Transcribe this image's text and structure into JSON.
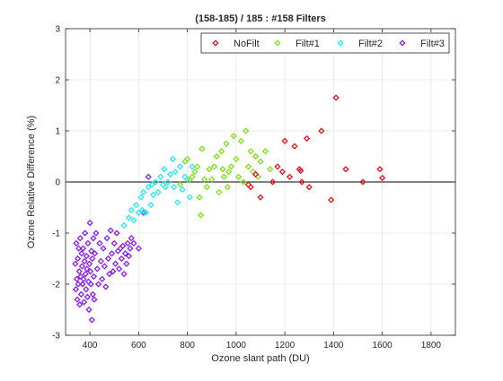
{
  "chart_data": {
    "type": "scatter",
    "title": "(158-185) / 185 : #158 Filters",
    "xlabel": "Ozone slant path (DU)",
    "ylabel": "Ozone Relative Difference (%)",
    "xlim": [
      300,
      1900
    ],
    "ylim": [
      -3,
      3
    ],
    "x_ticks": [
      400,
      600,
      800,
      1000,
      1200,
      1400,
      1600,
      1800
    ],
    "y_ticks": [
      -3,
      -2,
      -1,
      0,
      1,
      2,
      3
    ],
    "grid": true,
    "legend_position": "top",
    "legend_orientation": "horizontal",
    "marker": "diamond",
    "reference_line_y": 0,
    "series": [
      {
        "name": "NoFilt",
        "color": "#e8101c",
        "points": [
          [
            1050,
            -0.05
          ],
          [
            1060,
            -0.1
          ],
          [
            1080,
            0.15
          ],
          [
            1100,
            -0.3
          ],
          [
            1150,
            0.0
          ],
          [
            1170,
            0.3
          ],
          [
            1190,
            0.2
          ],
          [
            1200,
            0.8
          ],
          [
            1220,
            0.1
          ],
          [
            1240,
            0.7
          ],
          [
            1260,
            0.25
          ],
          [
            1265,
            0.22
          ],
          [
            1270,
            0.0
          ],
          [
            1290,
            0.85
          ],
          [
            1300,
            -0.1
          ],
          [
            1350,
            1.0
          ],
          [
            1390,
            -0.35
          ],
          [
            1410,
            1.65
          ],
          [
            1450,
            0.25
          ],
          [
            1520,
            0.0
          ],
          [
            1590,
            0.25
          ],
          [
            1600,
            0.08
          ]
        ]
      },
      {
        "name": "Filt#1",
        "color": "#7ee01a",
        "points": [
          [
            770,
            -0.05
          ],
          [
            790,
            0.4
          ],
          [
            800,
            0.45
          ],
          [
            810,
            0.05
          ],
          [
            820,
            0.1
          ],
          [
            830,
            0.2
          ],
          [
            840,
            0.3
          ],
          [
            850,
            -0.3
          ],
          [
            855,
            -0.65
          ],
          [
            860,
            0.65
          ],
          [
            870,
            0.05
          ],
          [
            880,
            -0.1
          ],
          [
            890,
            0.25
          ],
          [
            900,
            0.05
          ],
          [
            910,
            0.3
          ],
          [
            920,
            0.5
          ],
          [
            930,
            -0.2
          ],
          [
            940,
            0.6
          ],
          [
            945,
            0.25
          ],
          [
            950,
            0.1
          ],
          [
            960,
            0.75
          ],
          [
            965,
            -0.1
          ],
          [
            970,
            0.2
          ],
          [
            980,
            0.3
          ],
          [
            990,
            0.9
          ],
          [
            1000,
            0.45
          ],
          [
            1010,
            0.1
          ],
          [
            1020,
            0.8
          ],
          [
            1030,
            0.0
          ],
          [
            1040,
            1.0
          ],
          [
            1050,
            0.3
          ],
          [
            1060,
            0.6
          ],
          [
            1070,
            0.2
          ],
          [
            1080,
            0.5
          ],
          [
            1090,
            0.1
          ],
          [
            1100,
            0.4
          ],
          [
            1120,
            0.6
          ],
          [
            1140,
            0.25
          ]
        ]
      },
      {
        "name": "Filt#2",
        "color": "#2ae8f0",
        "points": [
          [
            540,
            -0.85
          ],
          [
            560,
            -0.7
          ],
          [
            570,
            -0.55
          ],
          [
            580,
            -0.75
          ],
          [
            590,
            -0.45
          ],
          [
            600,
            -0.6
          ],
          [
            610,
            -0.3
          ],
          [
            615,
            -0.55
          ],
          [
            620,
            -0.2
          ],
          [
            630,
            -0.6
          ],
          [
            640,
            -0.1
          ],
          [
            650,
            -0.45
          ],
          [
            655,
            -0.05
          ],
          [
            660,
            -0.25
          ],
          [
            670,
            0.0
          ],
          [
            680,
            -0.2
          ],
          [
            690,
            0.1
          ],
          [
            700,
            -0.05
          ],
          [
            705,
            0.25
          ],
          [
            710,
            -0.1
          ],
          [
            720,
            0.0
          ],
          [
            730,
            0.15
          ],
          [
            740,
            0.45
          ],
          [
            745,
            -0.1
          ],
          [
            750,
            0.2
          ],
          [
            760,
            -0.4
          ],
          [
            770,
            0.3
          ],
          [
            780,
            -0.15
          ],
          [
            790,
            0.1
          ],
          [
            800,
            0.05
          ],
          [
            810,
            -0.3
          ],
          [
            820,
            0.3
          ]
        ]
      },
      {
        "name": "Filt#3",
        "color": "#8a1ee8",
        "points": [
          [
            340,
            -1.6
          ],
          [
            342,
            -2.1
          ],
          [
            344,
            -1.2
          ],
          [
            346,
            -1.9
          ],
          [
            348,
            -2.3
          ],
          [
            350,
            -1.5
          ],
          [
            352,
            -2.0
          ],
          [
            354,
            -1.3
          ],
          [
            356,
            -1.75
          ],
          [
            358,
            -2.4
          ],
          [
            360,
            -1.1
          ],
          [
            362,
            -1.85
          ],
          [
            364,
            -2.2
          ],
          [
            366,
            -1.4
          ],
          [
            368,
            -1.65
          ],
          [
            370,
            -2.0
          ],
          [
            372,
            -1.3
          ],
          [
            374,
            -1.9
          ],
          [
            376,
            -2.35
          ],
          [
            378,
            -1.55
          ],
          [
            380,
            -1.0
          ],
          [
            382,
            -1.8
          ],
          [
            384,
            -2.1
          ],
          [
            386,
            -1.45
          ],
          [
            388,
            -1.7
          ],
          [
            390,
            -2.25
          ],
          [
            392,
            -1.2
          ],
          [
            394,
            -1.95
          ],
          [
            396,
            -2.5
          ],
          [
            398,
            -1.6
          ],
          [
            400,
            -0.8
          ],
          [
            402,
            -1.75
          ],
          [
            404,
            -2.0
          ],
          [
            406,
            -1.35
          ],
          [
            408,
            -2.7
          ],
          [
            410,
            -1.5
          ],
          [
            412,
            -2.2
          ],
          [
            414,
            -1.1
          ],
          [
            416,
            -1.85
          ],
          [
            418,
            -2.3
          ],
          [
            420,
            -1.4
          ],
          [
            425,
            -1.0
          ],
          [
            430,
            -1.7
          ],
          [
            435,
            -2.0
          ],
          [
            440,
            -1.2
          ],
          [
            445,
            -1.55
          ],
          [
            450,
            -1.9
          ],
          [
            455,
            -1.3
          ],
          [
            460,
            -1.65
          ],
          [
            465,
            -2.05
          ],
          [
            470,
            -1.1
          ],
          [
            475,
            -1.5
          ],
          [
            480,
            -1.8
          ],
          [
            485,
            -0.95
          ],
          [
            490,
            -1.4
          ],
          [
            495,
            -1.75
          ],
          [
            500,
            -1.2
          ],
          [
            505,
            -1.6
          ],
          [
            510,
            -1.0
          ],
          [
            515,
            -1.35
          ],
          [
            520,
            -1.7
          ],
          [
            525,
            -1.3
          ],
          [
            530,
            -1.5
          ],
          [
            535,
            -1.25
          ],
          [
            540,
            -1.8
          ],
          [
            545,
            -1.4
          ],
          [
            550,
            -1.6
          ],
          [
            555,
            -1.2
          ],
          [
            560,
            -1.45
          ],
          [
            565,
            -1.3
          ],
          [
            570,
            -1.1
          ],
          [
            580,
            -1.2
          ],
          [
            600,
            -1.3
          ],
          [
            620,
            -0.6
          ],
          [
            640,
            0.1
          ]
        ]
      }
    ]
  }
}
